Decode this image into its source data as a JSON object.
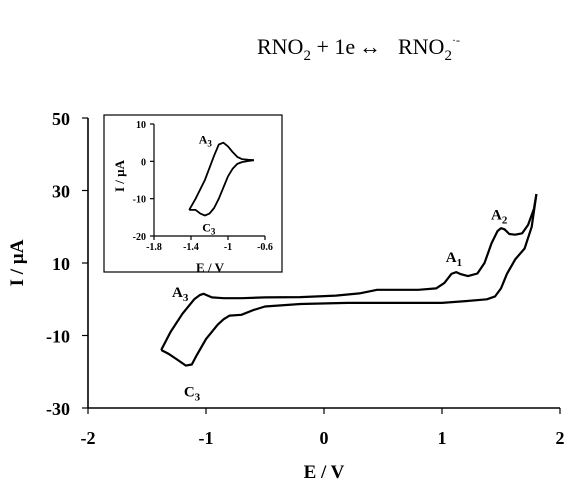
{
  "equation": {
    "left": "RNO",
    "left_sub": "2",
    "middle": " + 1e",
    "arrow": "↔",
    "right": "RNO",
    "right_sub": "2",
    "right_sup": "·-"
  },
  "chart_data": [
    {
      "type": "line",
      "xlabel": "E / V",
      "ylabel": "I / µA",
      "xlim": [
        -2,
        2
      ],
      "ylim": [
        -30,
        50
      ],
      "xticks": [
        "-2",
        "-1",
        "0",
        "1",
        "2"
      ],
      "yticks": [
        "-30",
        "-10",
        "10",
        "30",
        "50"
      ],
      "annotations": [
        {
          "label": "A",
          "sub": "3",
          "x": -1.0,
          "y": 1.5
        },
        {
          "label": "C",
          "sub": "3",
          "x": -1.12,
          "y": -18.5
        },
        {
          "label": "A",
          "sub": "1",
          "x": 1.1,
          "y": 7.5
        },
        {
          "label": "A",
          "sub": "2",
          "x": 1.5,
          "y": 19.5
        }
      ],
      "series": [
        {
          "x": [
            -1.38,
            -1.3,
            -1.2,
            -1.1,
            -1.05,
            -1.02,
            -1.0,
            -0.95,
            -0.85,
            -0.7,
            -0.5,
            -0.2,
            0.1,
            0.3,
            0.45,
            0.6,
            0.8,
            0.95,
            1.02,
            1.08,
            1.12,
            1.16,
            1.22,
            1.3,
            1.36,
            1.42,
            1.47,
            1.5,
            1.53,
            1.57,
            1.62,
            1.68,
            1.73,
            1.78,
            1.8
          ],
          "y": [
            -14,
            -9,
            -4,
            0,
            1.2,
            1.5,
            1.2,
            0.5,
            0.3,
            0.3,
            0.5,
            0.6,
            1.0,
            1.6,
            2.6,
            2.6,
            2.6,
            3.0,
            4.5,
            7.0,
            7.5,
            6.9,
            6.4,
            7.1,
            10.0,
            15.5,
            18.8,
            19.6,
            19.3,
            18.0,
            17.8,
            18.2,
            20.5,
            25.0,
            29.0
          ],
          "name": ""
        },
        {
          "x": [
            1.8,
            1.76,
            1.7,
            1.62,
            1.55,
            1.5,
            1.45,
            1.38,
            1.2,
            1.0,
            0.6,
            0.2,
            -0.2,
            -0.5,
            -0.6,
            -0.7,
            -0.8,
            -0.85,
            -0.9,
            -1.0,
            -1.08,
            -1.12,
            -1.17,
            -1.25,
            -1.32,
            -1.38
          ],
          "y": [
            29.0,
            20.0,
            14.0,
            11.0,
            7.0,
            3.0,
            0.8,
            0.0,
            -0.5,
            -1.0,
            -1.0,
            -1.0,
            -1.3,
            -2.0,
            -3.0,
            -4.3,
            -4.5,
            -5.5,
            -7.0,
            -11.0,
            -15.5,
            -18.0,
            -18.3,
            -16.5,
            -15.0,
            -14.0
          ],
          "name": ""
        }
      ]
    },
    {
      "type": "line",
      "xlabel": "E / V",
      "ylabel": "I / µA",
      "xlim": [
        -1.8,
        -0.6
      ],
      "ylim": [
        -20,
        10
      ],
      "xticks": [
        "-1.8",
        "-1.4",
        "-1",
        "-0.6"
      ],
      "yticks": [
        "10",
        "0",
        "-10",
        "-20"
      ],
      "annotations": [
        {
          "label": "A",
          "sub": "3",
          "x": -1.1,
          "y": 5
        },
        {
          "label": "C",
          "sub": "3",
          "x": -1.3,
          "y": -14
        }
      ],
      "series": [
        {
          "x": [
            -1.42,
            -1.35,
            -1.25,
            -1.15,
            -1.1,
            -1.05,
            -1.0,
            -0.95,
            -0.9,
            -0.85,
            -0.78,
            -0.72
          ],
          "y": [
            -13,
            -10,
            -5,
            1.5,
            4.5,
            5.0,
            4.0,
            2.5,
            1.2,
            0.6,
            0.4,
            0.3
          ],
          "name": ""
        },
        {
          "x": [
            -0.72,
            -0.78,
            -0.85,
            -0.9,
            -0.95,
            -1.0,
            -1.05,
            -1.1,
            -1.15,
            -1.2,
            -1.25,
            -1.3,
            -1.35,
            -1.38,
            -1.42
          ],
          "y": [
            0.3,
            0.1,
            -0.2,
            -0.7,
            -2.0,
            -4.0,
            -7.0,
            -10.0,
            -12.5,
            -14.0,
            -14.5,
            -14.0,
            -13.0,
            -13.0,
            -13.0
          ],
          "name": ""
        }
      ]
    }
  ]
}
